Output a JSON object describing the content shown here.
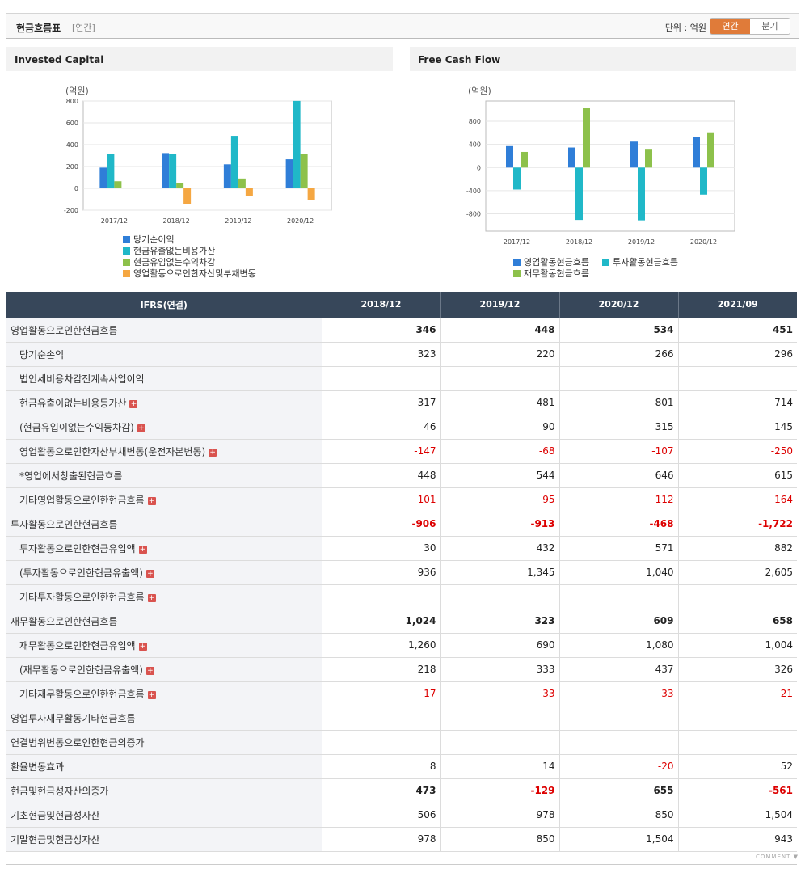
{
  "header": {
    "title": "현금흐름표",
    "period_tag": "[연간]",
    "unit_label": "단위 : 억원",
    "toggle": {
      "annual": "연간",
      "quarterly": "분기"
    }
  },
  "charts": [
    {
      "panel_title": "Invested Capital",
      "unit": "(억원)",
      "colors": [
        "#2f7ed8",
        "#20b8c8",
        "#8dc14b",
        "#f5a742"
      ],
      "chart_data": {
        "type": "bar",
        "categories": [
          "2017/12",
          "2018/12",
          "2019/12",
          "2020/12"
        ],
        "ylim": [
          -200,
          800
        ],
        "yticks": [
          "800",
          "600",
          "400",
          "200",
          "0",
          "-200"
        ],
        "series": [
          {
            "name": "당기순이익",
            "values": [
              190,
              323,
              220,
              266
            ]
          },
          {
            "name": "현금유출없는비용가산",
            "values": [
              317,
              317,
              481,
              801
            ]
          },
          {
            "name": "현금유입없는수익차감",
            "values": [
              65,
              46,
              90,
              315
            ]
          },
          {
            "name": "영업활동으로인한자산및부채변동",
            "values": [
              0,
              -147,
              -68,
              -107
            ]
          }
        ]
      }
    },
    {
      "panel_title": "Free Cash Flow",
      "unit": "(억원)",
      "colors": [
        "#2f7ed8",
        "#20b8c8",
        "#8dc14b"
      ],
      "chart_data": {
        "type": "bar",
        "categories": [
          "2017/12",
          "2018/12",
          "2019/12",
          "2020/12"
        ],
        "ylim": [
          -1100,
          1150
        ],
        "yticks": [
          "800",
          "400",
          "0",
          "-400",
          "-800"
        ],
        "series": [
          {
            "name": "영업활동현금흐름",
            "values": [
              370,
              346,
              448,
              534
            ]
          },
          {
            "name": "투자활동현금흐름",
            "values": [
              -380,
              -906,
              -913,
              -468
            ]
          },
          {
            "name": "재무활동현금흐름",
            "values": [
              270,
              1024,
              323,
              609
            ]
          }
        ]
      }
    }
  ],
  "table": {
    "headers": [
      "IFRS(연결)",
      "2018/12",
      "2019/12",
      "2020/12",
      "2021/09"
    ],
    "rows": [
      {
        "label": "영업활동으로인한현금흐름",
        "values": [
          "346",
          "448",
          "534",
          "451"
        ],
        "main": true
      },
      {
        "label": "당기순손익",
        "values": [
          "323",
          "220",
          "266",
          "296"
        ]
      },
      {
        "label": "법인세비용차감전계속사업이익",
        "values": [
          "",
          "",
          "",
          ""
        ]
      },
      {
        "label": "현금유출이없는비용등가산",
        "values": [
          "317",
          "481",
          "801",
          "714"
        ],
        "plus": true
      },
      {
        "label": "(현금유입이없는수익등차감)",
        "values": [
          "46",
          "90",
          "315",
          "145"
        ],
        "plus": true
      },
      {
        "label": "영업활동으로인한자산부채변동(운전자본변동)",
        "values": [
          "-147",
          "-68",
          "-107",
          "-250"
        ],
        "plus": true
      },
      {
        "label": "*영업에서창출된현금흐름",
        "values": [
          "448",
          "544",
          "646",
          "615"
        ]
      },
      {
        "label": "기타영업활동으로인한현금흐름",
        "values": [
          "-101",
          "-95",
          "-112",
          "-164"
        ],
        "plus": true
      },
      {
        "label": "투자활동으로인한현금흐름",
        "values": [
          "-906",
          "-913",
          "-468",
          "-1,722"
        ],
        "main": true
      },
      {
        "label": "투자활동으로인한현금유입액",
        "values": [
          "30",
          "432",
          "571",
          "882"
        ],
        "plus": true
      },
      {
        "label": "(투자활동으로인한현금유출액)",
        "values": [
          "936",
          "1,345",
          "1,040",
          "2,605"
        ],
        "plus": true
      },
      {
        "label": "기타투자활동으로인한현금흐름",
        "values": [
          "",
          "",
          "",
          ""
        ],
        "plus": true
      },
      {
        "label": "재무활동으로인한현금흐름",
        "values": [
          "1,024",
          "323",
          "609",
          "658"
        ],
        "main": true
      },
      {
        "label": "재무활동으로인한현금유입액",
        "values": [
          "1,260",
          "690",
          "1,080",
          "1,004"
        ],
        "plus": true
      },
      {
        "label": "(재무활동으로인한현금유출액)",
        "values": [
          "218",
          "333",
          "437",
          "326"
        ],
        "plus": true
      },
      {
        "label": "기타재무활동으로인한현금흐름",
        "values": [
          "-17",
          "-33",
          "-33",
          "-21"
        ],
        "plus": true
      },
      {
        "label": "영업투자재무활동기타현금흐름",
        "values": [
          "",
          "",
          "",
          ""
        ],
        "main": true
      },
      {
        "label": "연결범위변동으로인한현금의증가",
        "values": [
          "",
          "",
          "",
          ""
        ],
        "main": true
      },
      {
        "label": "환율변동효과",
        "values": [
          "8",
          "14",
          "-20",
          "52"
        ],
        "main": true,
        "normal": true
      },
      {
        "label": "현금및현금성자산의증가",
        "values": [
          "473",
          "-129",
          "655",
          "-561"
        ],
        "main": true
      },
      {
        "label": "기초현금및현금성자산",
        "values": [
          "506",
          "978",
          "850",
          "1,504"
        ],
        "main": true,
        "normal": true
      },
      {
        "label": "기말현금및현금성자산",
        "values": [
          "978",
          "850",
          "1,504",
          "943"
        ],
        "main": true,
        "normal": true
      }
    ]
  },
  "footer": {
    "comment": "COMMENT"
  }
}
